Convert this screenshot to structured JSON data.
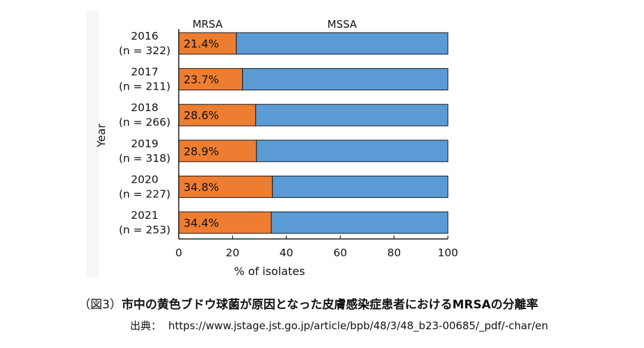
{
  "chart_data": {
    "type": "bar",
    "orientation": "horizontal",
    "stacked": true,
    "categories": [
      "2016",
      "2017",
      "2018",
      "2019",
      "2020",
      "2021"
    ],
    "category_sublabels": [
      "(n = 322)",
      "(n = 211)",
      "(n = 266)",
      "(n = 318)",
      "(n = 227)",
      "(n = 253)"
    ],
    "series": [
      {
        "name": "MRSA",
        "values": [
          21.4,
          23.7,
          28.6,
          28.9,
          34.8,
          34.4
        ],
        "color": "#ED7D31"
      },
      {
        "name": "MSSA",
        "values": [
          78.6,
          76.3,
          71.4,
          71.1,
          65.2,
          65.6
        ],
        "color": "#5B9BD5"
      }
    ],
    "data_labels": [
      "21.4%",
      "23.7%",
      "28.6%",
      "28.9%",
      "34.8%",
      "34.4%"
    ],
    "xlabel": "% of isolates",
    "ylabel": "Year",
    "xlim": [
      0,
      100
    ],
    "xticks": [
      "0",
      "20",
      "40",
      "60",
      "80",
      "100"
    ],
    "legend": [
      "MRSA",
      "MSSA"
    ],
    "legend_placement": "top"
  },
  "caption": {
    "number": "（図3）",
    "title": "市中の黄色ブドウ球菌が原因となった皮膚感染症患者におけるMRSAの分離率"
  },
  "source": {
    "label": "出典：",
    "url": "https://www.jstage.jst.go.jp/article/bpb/48/3/48_b23-00685/_pdf/-char/en"
  }
}
